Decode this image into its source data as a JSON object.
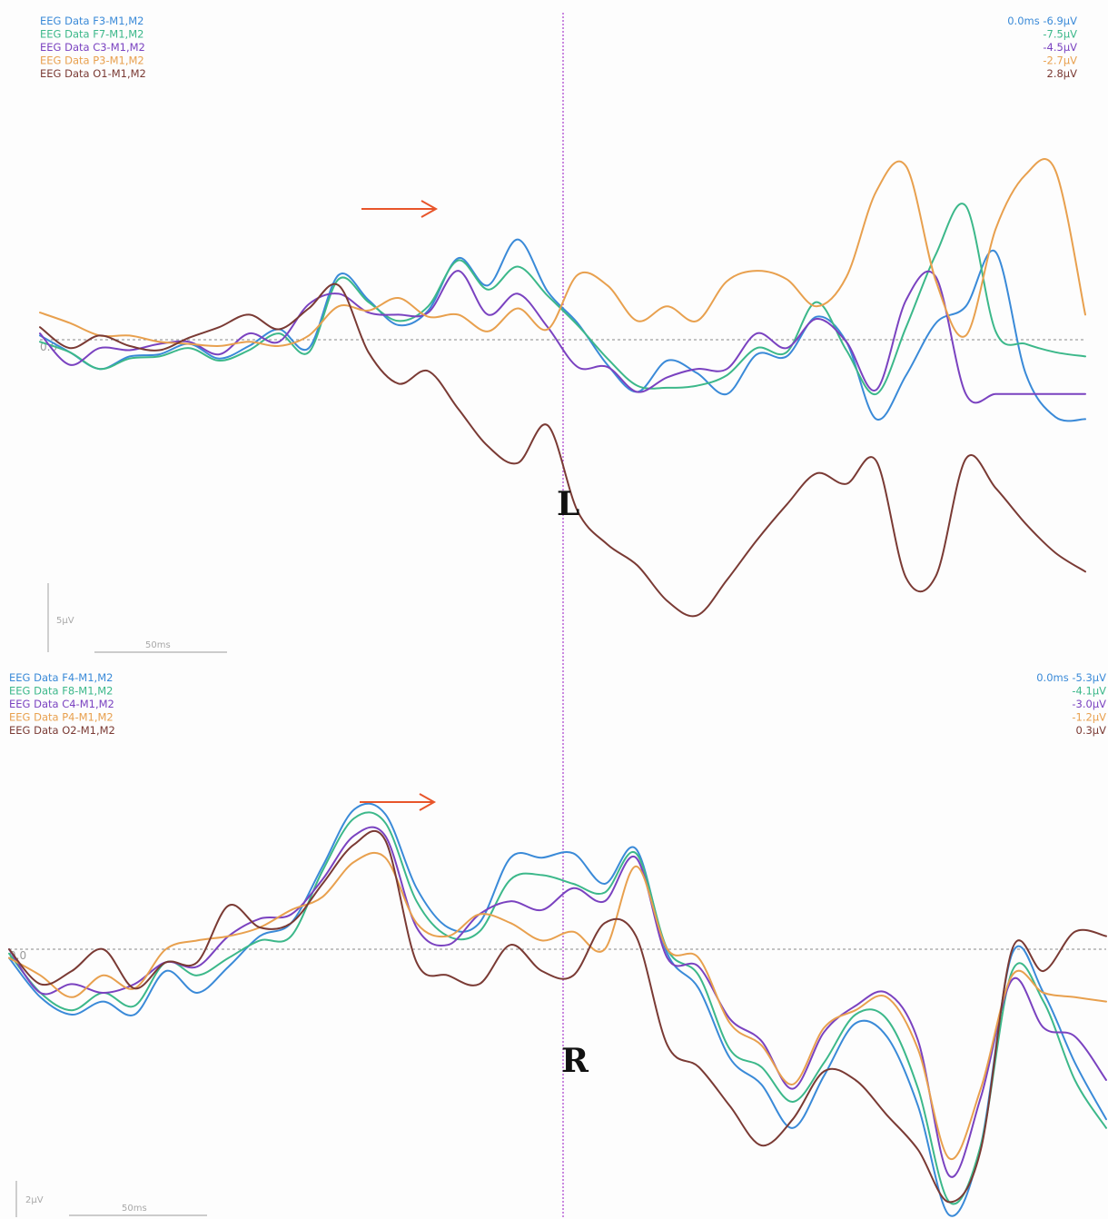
{
  "colors": {
    "ch1": "#3a8ad8",
    "ch2": "#3cb88a",
    "ch3": "#7a42c0",
    "ch4": "#e8a04e",
    "ch5": "#7a3a34",
    "marker_line": "#b04ad0",
    "arrow": "#e8552a",
    "zero_line": "#888888",
    "scale_bar": "#b0b0b0"
  },
  "chart_data": [
    {
      "type": "line",
      "panel_label": "L",
      "zero_label": "0.0",
      "cursor_time": "0.0ms",
      "scale_amplitude": "5μV",
      "scale_time": "50ms",
      "x_unit": "ms",
      "y_unit": "μV",
      "xlim": [
        -175,
        175
      ],
      "ylim": [
        -16,
        10
      ],
      "grid": false,
      "legend_position": "top-left",
      "arrow_time": -40,
      "x": [
        -175,
        -165,
        -155,
        -145,
        -135,
        -125,
        -115,
        -105,
        -95,
        -85,
        -75,
        -65,
        -55,
        -45,
        -35,
        -25,
        -15,
        -5,
        5,
        15,
        25,
        35,
        45,
        55,
        65,
        75,
        85,
        95,
        105,
        115,
        125,
        135,
        145,
        155,
        165,
        175
      ],
      "series": [
        {
          "name": "EEG Data F3-M1,M2",
          "readout": "-6.9μV",
          "color_key": "ch1",
          "values": [
            0.2,
            -0.6,
            -1.4,
            -0.8,
            -0.7,
            -0.2,
            -0.9,
            -0.3,
            0.5,
            -0.4,
            3.1,
            1.9,
            0.7,
            1.4,
            3.9,
            2.6,
            4.8,
            2.3,
            0.8,
            -1.2,
            -2.5,
            -1.0,
            -1.6,
            -2.6,
            -0.7,
            -0.8,
            1.1,
            -0.1,
            -3.8,
            -1.7,
            0.8,
            1.6,
            4.2,
            -1.6,
            -3.7,
            -3.8
          ]
        },
        {
          "name": "EEG Data F7-M1,M2",
          "readout": "-7.5μV",
          "color_key": "ch2",
          "values": [
            -0.1,
            -0.6,
            -1.4,
            -0.9,
            -0.8,
            -0.4,
            -1.0,
            -0.5,
            0.3,
            -0.6,
            2.9,
            1.8,
            0.9,
            1.6,
            3.8,
            2.4,
            3.5,
            2.1,
            0.7,
            -0.9,
            -2.2,
            -2.3,
            -2.2,
            -1.7,
            -0.4,
            -0.6,
            1.8,
            -0.5,
            -2.6,
            0.6,
            4.1,
            6.4,
            0.4,
            -0.2,
            -0.6,
            -0.8
          ]
        },
        {
          "name": "EEG Data C3-M1,M2",
          "readout": "-4.5μV",
          "color_key": "ch3",
          "values": [
            0.3,
            -1.2,
            -0.4,
            -0.5,
            -0.2,
            -0.1,
            -0.7,
            0.3,
            -0.1,
            1.7,
            2.2,
            1.3,
            1.2,
            1.3,
            3.3,
            1.2,
            2.2,
            0.6,
            -1.3,
            -1.3,
            -2.5,
            -1.8,
            -1.4,
            -1.4,
            0.3,
            -0.4,
            1.0,
            -0.1,
            -2.4,
            1.9,
            3.0,
            -2.6,
            -2.6,
            -2.6,
            -2.6,
            -2.6
          ]
        },
        {
          "name": "EEG Data P3-M1,M2",
          "readout": "-2.7μV",
          "color_key": "ch4",
          "values": [
            1.3,
            0.8,
            0.2,
            0.2,
            -0.1,
            -0.2,
            -0.3,
            -0.1,
            -0.3,
            0.2,
            1.6,
            1.4,
            2.0,
            1.1,
            1.2,
            0.4,
            1.5,
            0.5,
            3.1,
            2.6,
            0.9,
            1.6,
            0.9,
            2.8,
            3.3,
            2.9,
            1.6,
            3.0,
            7.1,
            8.3,
            2.8,
            0.2,
            5.3,
            7.9,
            8.1,
            1.2
          ]
        },
        {
          "name": "EEG Data O1-M1,M2",
          "readout": "2.8μV",
          "color_key": "ch5",
          "values": [
            0.6,
            -0.4,
            0.2,
            -0.3,
            -0.5,
            0.1,
            0.6,
            1.2,
            0.5,
            1.5,
            2.6,
            -0.6,
            -2.1,
            -1.5,
            -3.3,
            -5.1,
            -5.9,
            -4.1,
            -8.2,
            -9.8,
            -10.8,
            -12.5,
            -13.2,
            -11.5,
            -9.6,
            -7.9,
            -6.4,
            -6.9,
            -5.8,
            -11.4,
            -11.3,
            -5.7,
            -7.1,
            -8.8,
            -10.2,
            -11.1
          ]
        }
      ]
    },
    {
      "type": "line",
      "panel_label": "R",
      "zero_label": "0.0",
      "cursor_time": "0.0ms",
      "scale_amplitude": "2μV",
      "scale_time": "50ms",
      "x_unit": "ms",
      "y_unit": "μV",
      "xlim": [
        -175,
        175
      ],
      "ylim": [
        -8,
        5
      ],
      "grid": false,
      "legend_position": "top-left",
      "arrow_time": -40,
      "x": [
        -175,
        -165,
        -155,
        -145,
        -135,
        -125,
        -115,
        -105,
        -95,
        -85,
        -75,
        -65,
        -55,
        -45,
        -35,
        -25,
        -15,
        -5,
        5,
        15,
        25,
        35,
        45,
        55,
        65,
        75,
        85,
        95,
        105,
        115,
        125,
        135,
        145,
        155,
        165,
        175
      ],
      "series": [
        {
          "name": "EEG Data F4-M1,M2",
          "readout": "-5.3μV",
          "color_key": "ch1",
          "values": [
            -0.2,
            -1.1,
            -1.5,
            -1.2,
            -1.5,
            -0.5,
            -1.0,
            -0.4,
            0.3,
            0.6,
            1.9,
            3.2,
            3.1,
            1.4,
            0.5,
            0.6,
            2.1,
            2.1,
            2.2,
            1.5,
            2.3,
            -0.1,
            -0.9,
            -2.5,
            -3.1,
            -4.1,
            -2.9,
            -1.7,
            -2.0,
            -3.6,
            -6.1,
            -4.5,
            -0.1,
            -1.0,
            -2.6,
            -3.9
          ]
        },
        {
          "name": "EEG Data F8-M1,M2",
          "readout": "-4.1μV",
          "color_key": "ch2",
          "values": [
            -0.1,
            -1.0,
            -1.4,
            -1.0,
            -1.3,
            -0.3,
            -0.6,
            -0.2,
            0.2,
            0.3,
            1.8,
            3.0,
            2.9,
            1.1,
            0.3,
            0.4,
            1.6,
            1.7,
            1.5,
            1.3,
            2.2,
            0.0,
            -0.6,
            -2.3,
            -2.7,
            -3.5,
            -2.6,
            -1.5,
            -1.6,
            -3.2,
            -5.8,
            -4.5,
            -0.5,
            -1.2,
            -3.0,
            -4.1
          ]
        },
        {
          "name": "EEG Data C4-M1,M2",
          "readout": "-3.0μV",
          "color_key": "ch3",
          "values": [
            0.0,
            -1.0,
            -0.8,
            -1.0,
            -0.8,
            -0.3,
            -0.4,
            0.3,
            0.7,
            0.8,
            1.6,
            2.6,
            2.6,
            0.5,
            0.1,
            0.8,
            1.1,
            0.9,
            1.4,
            1.1,
            2.1,
            -0.2,
            -0.4,
            -1.6,
            -2.1,
            -3.2,
            -1.9,
            -1.3,
            -1.0,
            -2.1,
            -5.2,
            -3.4,
            -0.7,
            -1.8,
            -2.0,
            -3.0
          ]
        },
        {
          "name": "EEG Data P4-M1,M2",
          "readout": "-1.2μV",
          "color_key": "ch4",
          "values": [
            -0.2,
            -0.6,
            -1.1,
            -0.6,
            -0.9,
            0.0,
            0.2,
            0.3,
            0.5,
            0.9,
            1.2,
            2.0,
            2.1,
            0.6,
            0.3,
            0.8,
            0.6,
            0.2,
            0.4,
            0.0,
            1.9,
            0.0,
            -0.2,
            -1.7,
            -2.2,
            -3.1,
            -1.8,
            -1.4,
            -1.1,
            -2.3,
            -4.8,
            -3.2,
            -0.6,
            -1.0,
            -1.1,
            -1.2
          ]
        },
        {
          "name": "EEG Data O2-M1,M2",
          "readout": "0.3μV",
          "color_key": "ch5",
          "values": [
            0.0,
            -0.8,
            -0.5,
            0.0,
            -0.9,
            -0.3,
            -0.3,
            1.0,
            0.5,
            0.6,
            1.5,
            2.4,
            2.5,
            -0.3,
            -0.6,
            -0.8,
            0.1,
            -0.5,
            -0.6,
            0.6,
            0.3,
            -2.2,
            -2.7,
            -3.6,
            -4.5,
            -3.9,
            -2.8,
            -3.0,
            -3.8,
            -4.6,
            -5.8,
            -4.6,
            0.0,
            -0.5,
            0.4,
            0.3
          ]
        }
      ]
    }
  ]
}
